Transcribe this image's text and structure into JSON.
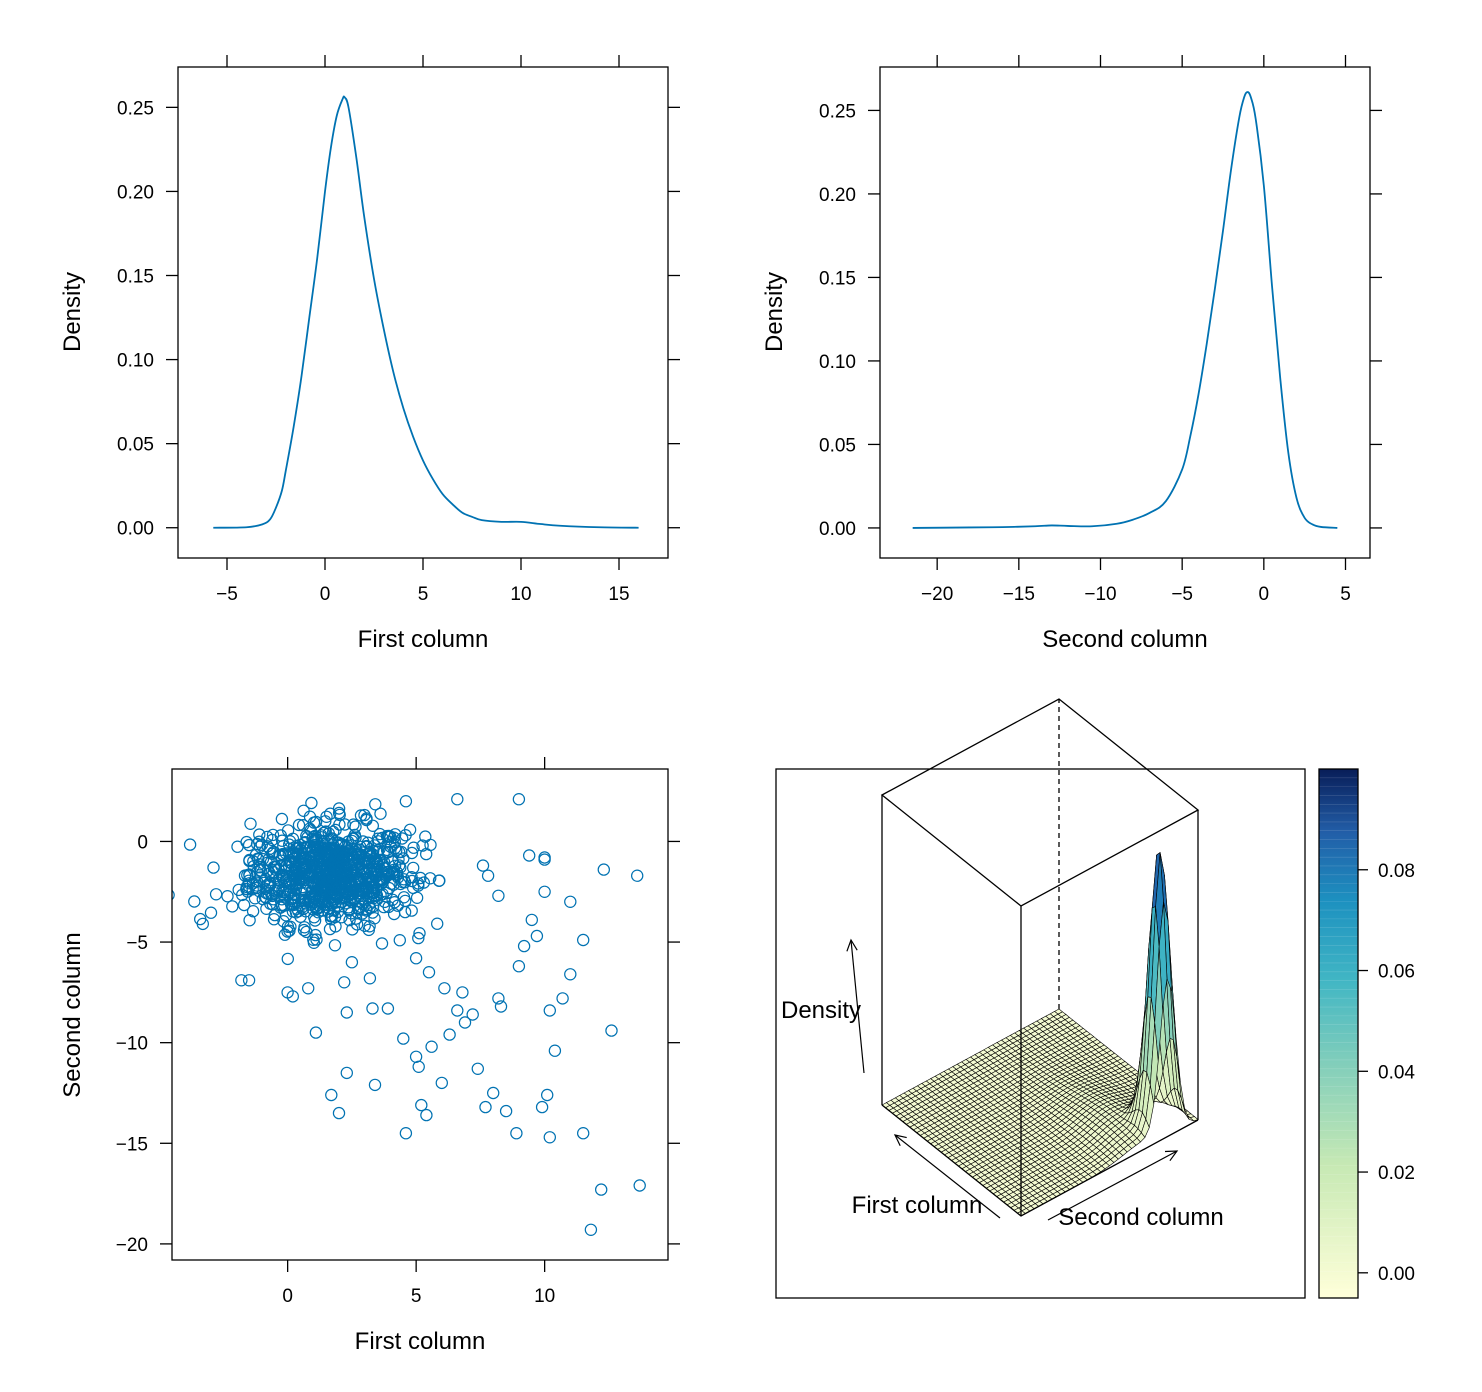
{
  "colors": {
    "series": "#0072B2",
    "frame": "#000000",
    "surface_mesh": "#000000",
    "colorkey_low": "#FFFFD9",
    "colorkey_mid": "#41B6C4",
    "colorkey_high": "#081D58"
  },
  "chart_data": [
    {
      "type": "line",
      "name": "density-first-column",
      "xlabel": "First column",
      "ylabel": "Density",
      "xlim": [
        -7.5,
        17.5
      ],
      "ylim": [
        -0.018,
        0.274
      ],
      "xticks": [
        -5,
        0,
        5,
        10,
        15
      ],
      "xtick_labels": [
        "−5",
        "0",
        "5",
        "10",
        "15"
      ],
      "yticks": [
        0.0,
        0.05,
        0.1,
        0.15,
        0.2,
        0.25
      ],
      "ytick_labels": [
        "0.00",
        "0.05",
        "0.10",
        "0.15",
        "0.20",
        "0.25"
      ],
      "x": [
        -5.7,
        -4,
        -3.2,
        -2.8,
        -2.5,
        -2.2,
        -2.0,
        -1.6,
        -1.2,
        -0.8,
        -0.4,
        0,
        0.3,
        0.6,
        0.9,
        1.0,
        1.2,
        1.6,
        2.0,
        2.5,
        3.0,
        3.5,
        4.0,
        4.5,
        5.0,
        5.5,
        6.0,
        6.5,
        7.0,
        7.5,
        8.0,
        9.0,
        10.0,
        11.0,
        12.0,
        14.0,
        16.0
      ],
      "y": [
        0.0,
        0.0003,
        0.002,
        0.005,
        0.012,
        0.022,
        0.034,
        0.06,
        0.09,
        0.125,
        0.16,
        0.2,
        0.226,
        0.245,
        0.255,
        0.256,
        0.25,
        0.22,
        0.185,
        0.148,
        0.118,
        0.092,
        0.071,
        0.054,
        0.04,
        0.029,
        0.02,
        0.014,
        0.009,
        0.0065,
        0.0045,
        0.0035,
        0.0035,
        0.0022,
        0.0012,
        0.0003,
        0.0
      ]
    },
    {
      "type": "line",
      "name": "density-second-column",
      "xlabel": "Second column",
      "ylabel": "Density",
      "xlim": [
        -23.5,
        6.5
      ],
      "ylim": [
        -0.018,
        0.276
      ],
      "xticks": [
        -20,
        -15,
        -10,
        -5,
        0,
        5
      ],
      "xtick_labels": [
        "−20",
        "−15",
        "−10",
        "−5",
        "0",
        "5"
      ],
      "yticks": [
        0.0,
        0.05,
        0.1,
        0.15,
        0.2,
        0.25
      ],
      "ytick_labels": [
        "0.00",
        "0.05",
        "0.10",
        "0.15",
        "0.20",
        "0.25"
      ],
      "x": [
        -21.5,
        -18,
        -16,
        -14,
        -13,
        -12,
        -10.5,
        -9,
        -8,
        -7,
        -6,
        -5,
        -4.5,
        -4,
        -3.5,
        -3,
        -2.5,
        -2,
        -1.5,
        -1.2,
        -1.0,
        -0.8,
        -0.5,
        0,
        0.5,
        1.0,
        1.5,
        2.0,
        2.5,
        3.0,
        3.5,
        4.5
      ],
      "y": [
        0.0,
        0.0003,
        0.0005,
        0.001,
        0.0015,
        0.0012,
        0.001,
        0.0025,
        0.005,
        0.009,
        0.016,
        0.035,
        0.055,
        0.08,
        0.11,
        0.143,
        0.178,
        0.215,
        0.246,
        0.258,
        0.261,
        0.258,
        0.245,
        0.205,
        0.145,
        0.09,
        0.045,
        0.018,
        0.006,
        0.002,
        0.0006,
        0.0
      ]
    },
    {
      "type": "scatter",
      "name": "scatter-first-vs-second",
      "xlabel": "First column",
      "ylabel": "Second column",
      "xlim": [
        -4.5,
        14.8
      ],
      "ylim": [
        -20.8,
        3.6
      ],
      "xticks": [
        0,
        5,
        10
      ],
      "xtick_labels": [
        "0",
        "5",
        "10"
      ],
      "yticks": [
        0,
        -5,
        -10,
        -15,
        -20
      ],
      "ytick_labels": [
        "0",
        "−5",
        "−10",
        "−15",
        "−20"
      ],
      "cluster_center": [
        1.6,
        -1.6
      ],
      "cluster_points": 900,
      "points": [
        [
          -3.3,
          -4.1
        ],
        [
          -1.8,
          -6.9
        ],
        [
          -1.5,
          -6.9
        ],
        [
          0.0,
          -7.5
        ],
        [
          0.8,
          -7.3
        ],
        [
          1.1,
          -9.5
        ],
        [
          1.7,
          -12.6
        ],
        [
          2.0,
          -13.5
        ],
        [
          2.3,
          -11.5
        ],
        [
          3.4,
          -12.1
        ],
        [
          4.5,
          -9.8
        ],
        [
          4.6,
          -14.5
        ],
        [
          5.0,
          -10.7
        ],
        [
          5.1,
          -11.2
        ],
        [
          5.2,
          -13.1
        ],
        [
          5.4,
          -13.6
        ],
        [
          5.6,
          -10.2
        ],
        [
          6.0,
          -12.0
        ],
        [
          6.3,
          -9.6
        ],
        [
          6.6,
          -8.4
        ],
        [
          6.8,
          -7.5
        ],
        [
          6.9,
          -9.0
        ],
        [
          7.2,
          -8.6
        ],
        [
          7.4,
          -11.3
        ],
        [
          7.7,
          -13.2
        ],
        [
          8.0,
          -12.5
        ],
        [
          8.2,
          -7.8
        ],
        [
          8.3,
          -8.2
        ],
        [
          8.5,
          -13.4
        ],
        [
          8.9,
          -14.5
        ],
        [
          9.0,
          -6.2
        ],
        [
          9.2,
          -5.2
        ],
        [
          9.5,
          -3.9
        ],
        [
          9.7,
          -4.7
        ],
        [
          9.9,
          -13.2
        ],
        [
          10.0,
          -0.9
        ],
        [
          10.1,
          -12.6
        ],
        [
          10.2,
          -8.4
        ],
        [
          10.2,
          -14.7
        ],
        [
          10.4,
          -10.4
        ],
        [
          10.7,
          -7.8
        ],
        [
          11.0,
          -3.0
        ],
        [
          11.0,
          -6.6
        ],
        [
          11.5,
          -4.9
        ],
        [
          11.5,
          -14.5
        ],
        [
          11.8,
          -19.3
        ],
        [
          12.2,
          -17.3
        ],
        [
          12.3,
          -1.4
        ],
        [
          12.6,
          -9.4
        ],
        [
          13.6,
          -1.7
        ],
        [
          13.7,
          -17.1
        ],
        [
          9.0,
          2.1
        ],
        [
          6.6,
          2.1
        ],
        [
          4.6,
          2.0
        ],
        [
          10.0,
          -2.5
        ],
        [
          8.2,
          -2.7
        ],
        [
          7.6,
          -1.2
        ],
        [
          10.0,
          -0.8
        ],
        [
          9.4,
          -0.7
        ],
        [
          7.8,
          -1.7
        ],
        [
          5.0,
          -5.8
        ],
        [
          6.1,
          -7.3
        ],
        [
          3.3,
          -8.3
        ],
        [
          3.9,
          -8.3
        ],
        [
          2.3,
          -8.5
        ],
        [
          5.5,
          -6.5
        ],
        [
          2.2,
          -7.0
        ],
        [
          0.2,
          -7.7
        ],
        [
          2.5,
          -6.0
        ],
        [
          3.2,
          -6.8
        ]
      ]
    },
    {
      "type": "surface3d",
      "name": "density-wireframe-3d",
      "xlabel": "First column",
      "ylabel": "Second column",
      "zlabel": "Density",
      "grid": [
        40,
        40
      ],
      "peak": {
        "x": 1.0,
        "y": -1.0,
        "z": 0.09
      },
      "colorkey": {
        "range": [
          -0.005,
          0.1
        ],
        "ticks": [
          0.0,
          0.02,
          0.04,
          0.06,
          0.08
        ],
        "tick_labels": [
          "0.00",
          "0.02",
          "0.04",
          "0.06",
          "0.08"
        ]
      }
    }
  ]
}
